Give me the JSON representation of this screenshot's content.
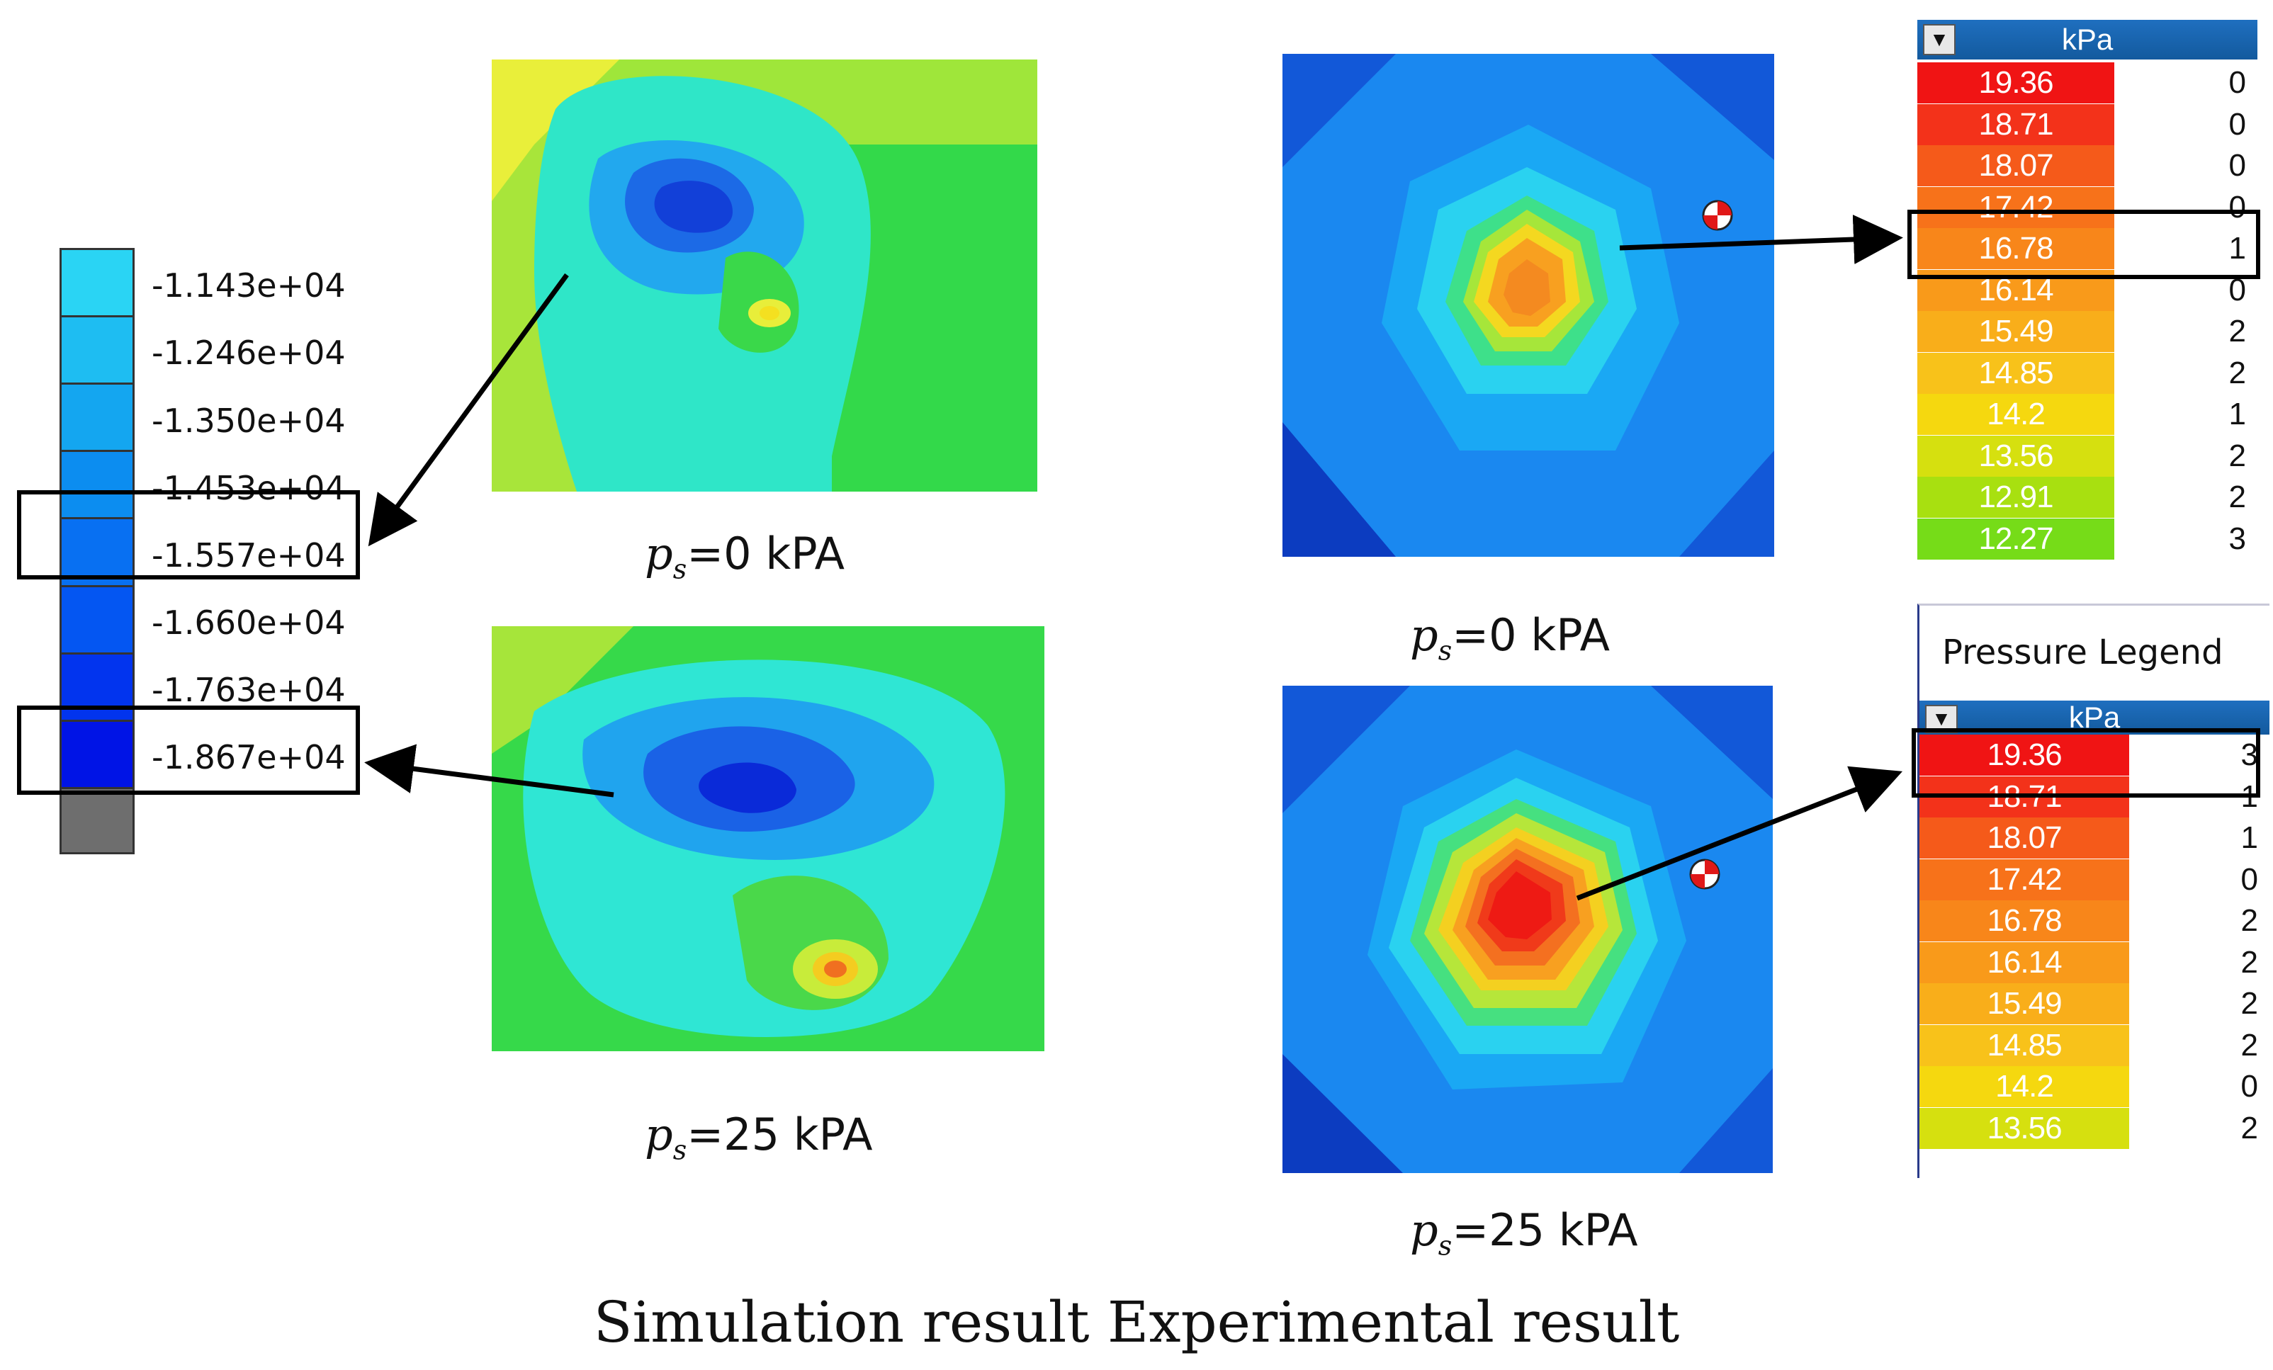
{
  "simulation_legend": {
    "labels": [
      "-1.143e+04",
      "-1.246e+04",
      "-1.350e+04",
      "-1.453e+04",
      "-1.557e+04",
      "-1.660e+04",
      "-1.763e+04",
      "-1.867e+04"
    ],
    "colors": [
      "#2ad4f4",
      "#1ebdf2",
      "#14a6f0",
      "#0c8df0",
      "#0870f2",
      "#0456f2",
      "#0234ee",
      "#0014e6",
      "#6e6e6e"
    ]
  },
  "captions": {
    "sim_top": {
      "symbol": "p",
      "sub": "s",
      "text": "=0 kPA"
    },
    "sim_bottom": {
      "symbol": "p",
      "sub": "s",
      "text": "=25 kPA"
    },
    "exp_top": {
      "symbol": "p",
      "sub": "s",
      "text": "=0 kPA"
    },
    "exp_bottom": {
      "symbol": "p",
      "sub": "s",
      "text": "=25 kPA"
    }
  },
  "exp_table_top": {
    "header": "kPa",
    "dropdown_icon": "triangle-down-icon",
    "rows": [
      {
        "value": "19.36",
        "count": "0",
        "color": "#f01414"
      },
      {
        "value": "18.71",
        "count": "0",
        "color": "#f3321a"
      },
      {
        "value": "18.07",
        "count": "0",
        "color": "#f55a1a"
      },
      {
        "value": "17.42",
        "count": "0",
        "color": "#f7721a"
      },
      {
        "value": "16.78",
        "count": "1",
        "color": "#f8861a"
      },
      {
        "value": "16.14",
        "count": "0",
        "color": "#f99a1a"
      },
      {
        "value": "15.49",
        "count": "2",
        "color": "#f9ae1a"
      },
      {
        "value": "14.85",
        "count": "2",
        "color": "#f8c21a"
      },
      {
        "value": "14.2",
        "count": "1",
        "color": "#f5d80f"
      },
      {
        "value": "13.56",
        "count": "2",
        "color": "#d6e00f"
      },
      {
        "value": "12.91",
        "count": "2",
        "color": "#a8e010"
      },
      {
        "value": "12.27",
        "count": "3",
        "color": "#76dc18"
      }
    ]
  },
  "exp_table_bottom": {
    "legend_title": "Pressure Legend",
    "header": "kPa",
    "dropdown_icon": "triangle-down-icon",
    "rows": [
      {
        "value": "19.36",
        "count": "3",
        "color": "#f01414"
      },
      {
        "value": "18.71",
        "count": "1",
        "color": "#f3321a"
      },
      {
        "value": "18.07",
        "count": "1",
        "color": "#f55a1a"
      },
      {
        "value": "17.42",
        "count": "0",
        "color": "#f7721a"
      },
      {
        "value": "16.78",
        "count": "2",
        "color": "#f8861a"
      },
      {
        "value": "16.14",
        "count": "2",
        "color": "#f99a1a"
      },
      {
        "value": "15.49",
        "count": "2",
        "color": "#f9ae1a"
      },
      {
        "value": "14.85",
        "count": "2",
        "color": "#f8c21a"
      },
      {
        "value": "14.2",
        "count": "0",
        "color": "#f5d80f"
      },
      {
        "value": "13.56",
        "count": "2",
        "color": "#d6e00f"
      }
    ]
  },
  "bottom_title": "Simulation result Experimental result"
}
